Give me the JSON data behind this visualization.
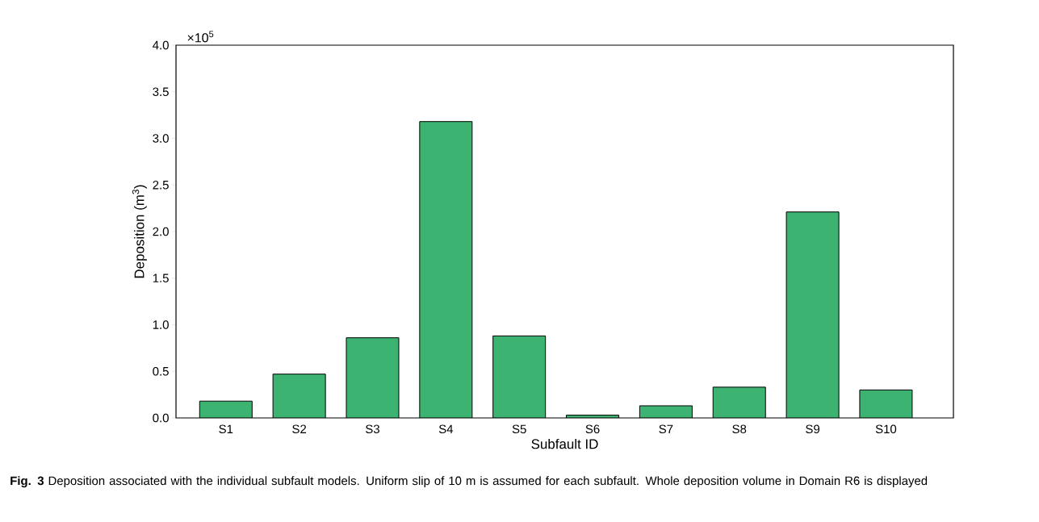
{
  "chart_data": {
    "type": "bar",
    "xlabel": "Subfault ID",
    "ylabel": "Deposition (m$^{3}$)",
    "categories": [
      "S1",
      "S2",
      "S3",
      "S4",
      "S5",
      "S6",
      "S7",
      "S8",
      "S9",
      "S10"
    ],
    "values": [
      0.18,
      0.47,
      0.86,
      3.18,
      0.88,
      0.03,
      0.13,
      0.33,
      2.21,
      0.3
    ],
    "color": "#3cb371",
    "ylim": [
      0,
      4.0
    ],
    "yticks": [
      {
        "value": 0,
        "label": "0.0"
      },
      {
        "value": 0.5,
        "label": "0.5"
      },
      {
        "value": 1,
        "label": "1.0"
      },
      {
        "value": 1.5,
        "label": "1.5"
      },
      {
        "value": 2,
        "label": "2.0"
      },
      {
        "value": 2.5,
        "label": "2.5"
      },
      {
        "value": 3,
        "label": "3.0"
      },
      {
        "value": 3.5,
        "label": "3.5"
      },
      {
        "value": 4,
        "label": "4.0"
      }
    ],
    "grid": false,
    "annotations": [
      "×10$^{5}$",
      "**Fig. 3** Deposition associated with the individual subfault models. Uniform slip of 10 m is assumed for each subfault. Whole deposition volume in Domain R6 is displayed"
    ]
  }
}
